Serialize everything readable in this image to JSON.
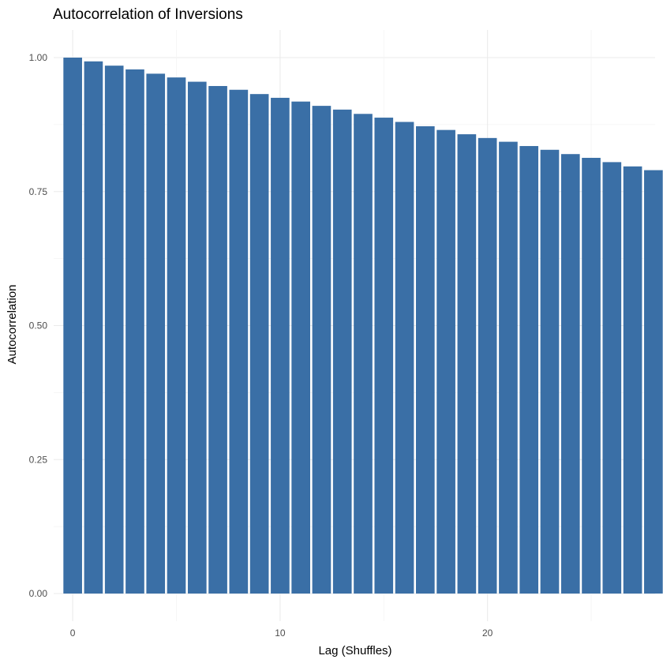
{
  "chart_data": {
    "type": "bar",
    "title": "Autocorrelation of Inversions",
    "xlabel": "Lag (Shuffles)",
    "ylabel": "Autocorrelation",
    "x": [
      0,
      1,
      2,
      3,
      4,
      5,
      6,
      7,
      8,
      9,
      10,
      11,
      12,
      13,
      14,
      15,
      16,
      17,
      18,
      19,
      20,
      21,
      22,
      23,
      24,
      25,
      26,
      27,
      28
    ],
    "values": [
      1.0,
      0.993,
      0.985,
      0.978,
      0.97,
      0.963,
      0.955,
      0.947,
      0.94,
      0.932,
      0.925,
      0.918,
      0.91,
      0.903,
      0.895,
      0.888,
      0.88,
      0.872,
      0.865,
      0.857,
      0.85,
      0.843,
      0.835,
      0.828,
      0.82,
      0.813,
      0.805,
      0.797,
      0.79
    ],
    "xlim": [
      -0.5,
      28.5
    ],
    "ylim": [
      0,
      1
    ],
    "x_ticks": [
      "0",
      "10",
      "20"
    ],
    "y_ticks": [
      "0.00",
      "0.25",
      "0.50",
      "0.75",
      "1.00"
    ],
    "bar_color": "#3A6FA6",
    "grid": true,
    "legend": "none"
  }
}
